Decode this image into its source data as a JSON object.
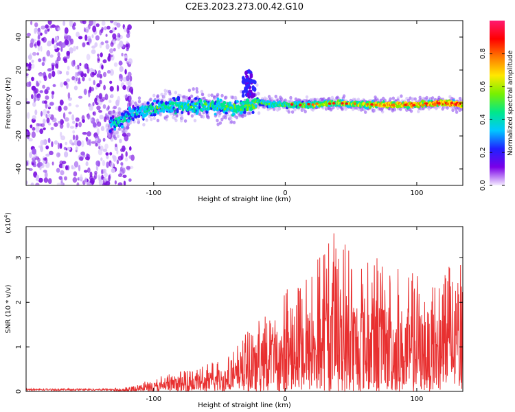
{
  "figure": {
    "title": "C2E3.2023.273.00.42.G10"
  },
  "chart_data": [
    {
      "type": "heatmap",
      "xlabel": "Height of straight line (km)",
      "ylabel": "Frequency (Hz)",
      "xlim": [
        -197,
        135
      ],
      "ylim": [
        -50,
        50
      ],
      "xticks": [
        -100,
        0,
        100
      ],
      "yticks": [
        -40,
        -20,
        0,
        20,
        40
      ],
      "colorbar": {
        "label": "Normalized spectral amplitude",
        "range": [
          0,
          1
        ],
        "ticks": [
          "0.0",
          "0.2",
          "0.4",
          "0.6",
          "0.8"
        ],
        "colors": [
          "#f4ecff",
          "#7a00e8",
          "#2020ff",
          "#00c8ff",
          "#00e88a",
          "#78f000",
          "#ffe800",
          "#ff7a00",
          "#ff0000",
          "#ff1a70"
        ]
      },
      "ridge": {
        "points": [
          [
            -130,
            -13
          ],
          [
            -120,
            -8
          ],
          [
            -100,
            -3
          ],
          [
            -80,
            -2
          ],
          [
            -60,
            -1
          ],
          [
            -40,
            -3
          ],
          [
            -30,
            -2
          ],
          [
            -20,
            0
          ],
          [
            0,
            -1
          ],
          [
            20,
            -1
          ],
          [
            40,
            0
          ],
          [
            60,
            -1
          ],
          [
            80,
            -1
          ],
          [
            100,
            -1
          ],
          [
            120,
            0
          ],
          [
            135,
            -1
          ]
        ],
        "side_lobe_peak": [
          -28,
          20
        ]
      },
      "noise_region_x": [
        -197,
        -120
      ]
    },
    {
      "type": "line",
      "xlabel": "Height of straight line (km)",
      "ylabel": "SNR (10 * v/v)",
      "scale_label": "(x10",
      "scale_exp": "4",
      "ylabel_suffix": ")",
      "xlim": [
        -197,
        135
      ],
      "ylim": [
        0,
        3.7
      ],
      "xticks": [
        -100,
        0,
        100
      ],
      "yticks": [
        0,
        1,
        2,
        3
      ],
      "series": [
        {
          "color": "#e83030",
          "envelope": [
            [
              -197,
              0.05
            ],
            [
              -140,
              0.06
            ],
            [
              -120,
              0.1
            ],
            [
              -100,
              0.3
            ],
            [
              -80,
              0.45
            ],
            [
              -60,
              0.6
            ],
            [
              -50,
              0.75
            ],
            [
              -40,
              0.95
            ],
            [
              -30,
              1.3
            ],
            [
              -20,
              1.6
            ],
            [
              -10,
              1.9
            ],
            [
              0,
              2.3
            ],
            [
              10,
              2.5
            ],
            [
              20,
              2.8
            ],
            [
              30,
              3.2
            ],
            [
              35,
              3.7
            ],
            [
              50,
              3.2
            ],
            [
              70,
              3.1
            ],
            [
              90,
              2.7
            ],
            [
              110,
              2.6
            ],
            [
              120,
              2.8
            ],
            [
              135,
              2.9
            ]
          ]
        }
      ]
    }
  ]
}
